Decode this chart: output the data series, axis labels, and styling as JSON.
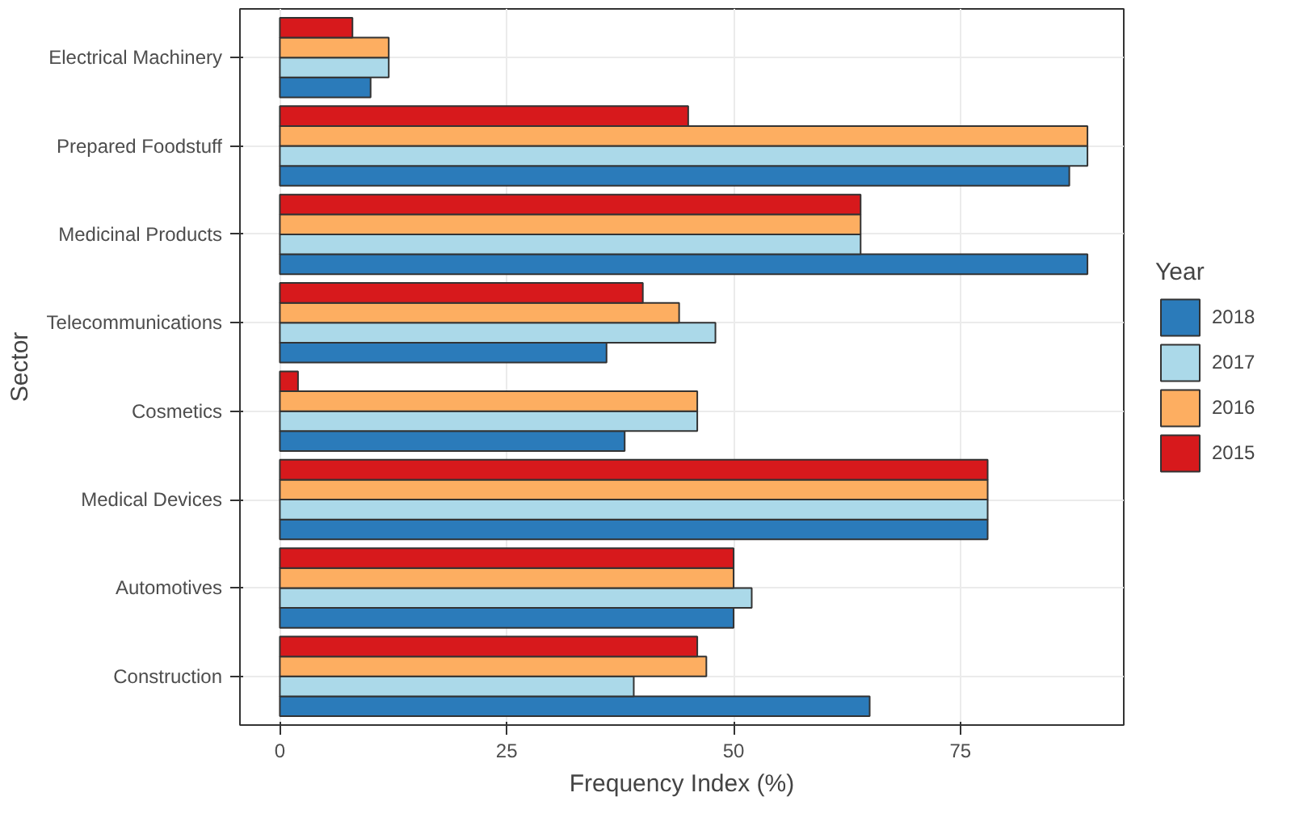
{
  "chart_data": {
    "type": "bar",
    "orientation": "horizontal",
    "xlabel": "Frequency Index (%)",
    "ylabel": "Sector",
    "legend_title": "Year",
    "categories": [
      "Electrical Machinery",
      "Prepared Foodstuff",
      "Medicinal Products",
      "Telecommunications",
      "Cosmetics",
      "Medical Devices",
      "Automotives",
      "Construction"
    ],
    "series": [
      {
        "name": "2018",
        "color": "#2b7bba",
        "values": [
          10,
          87,
          89,
          36,
          38,
          78,
          50,
          65
        ]
      },
      {
        "name": "2017",
        "color": "#abd9e9",
        "values": [
          12,
          89,
          64,
          48,
          46,
          78,
          52,
          39
        ]
      },
      {
        "name": "2016",
        "color": "#fdae61",
        "values": [
          12,
          89,
          64,
          44,
          46,
          78,
          50,
          47
        ]
      },
      {
        "name": "2015",
        "color": "#d7191c",
        "values": [
          8,
          45,
          64,
          40,
          2,
          78,
          50,
          46
        ]
      }
    ],
    "xlim": [
      -4.4,
      93
    ],
    "xticks": [
      0,
      25,
      50,
      75
    ],
    "grid": true,
    "legend": "right"
  }
}
